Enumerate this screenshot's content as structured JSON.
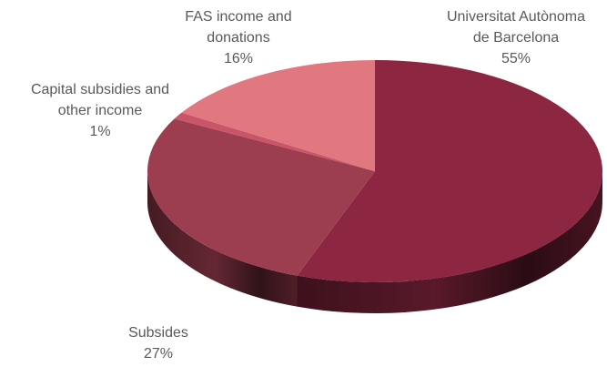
{
  "chart_data": {
    "type": "pie",
    "title": "",
    "slices": [
      {
        "label_lines": [
          "Universitat Autònoma",
          "de Barcelona"
        ],
        "value": 55,
        "value_label": "55%",
        "color": "#8C2641",
        "side_color": "#5E1A2C"
      },
      {
        "label_lines": [
          "Subsides"
        ],
        "value": 27,
        "value_label": "27%",
        "color": "#9D3E50",
        "side_color": "#6A2935"
      },
      {
        "label_lines": [
          "Capital subsidies and",
          "other income"
        ],
        "value": 1,
        "value_label": "1%",
        "color": "#C95568",
        "side_color": "#8A3846"
      },
      {
        "label_lines": [
          "FAS income and",
          "donations"
        ],
        "value": 16,
        "value_label": "16%",
        "color": "#E2787F",
        "side_color": "#A85058"
      }
    ],
    "start_angle_deg": 0,
    "direction": "clockwise",
    "legend": "none",
    "style": "3d"
  }
}
